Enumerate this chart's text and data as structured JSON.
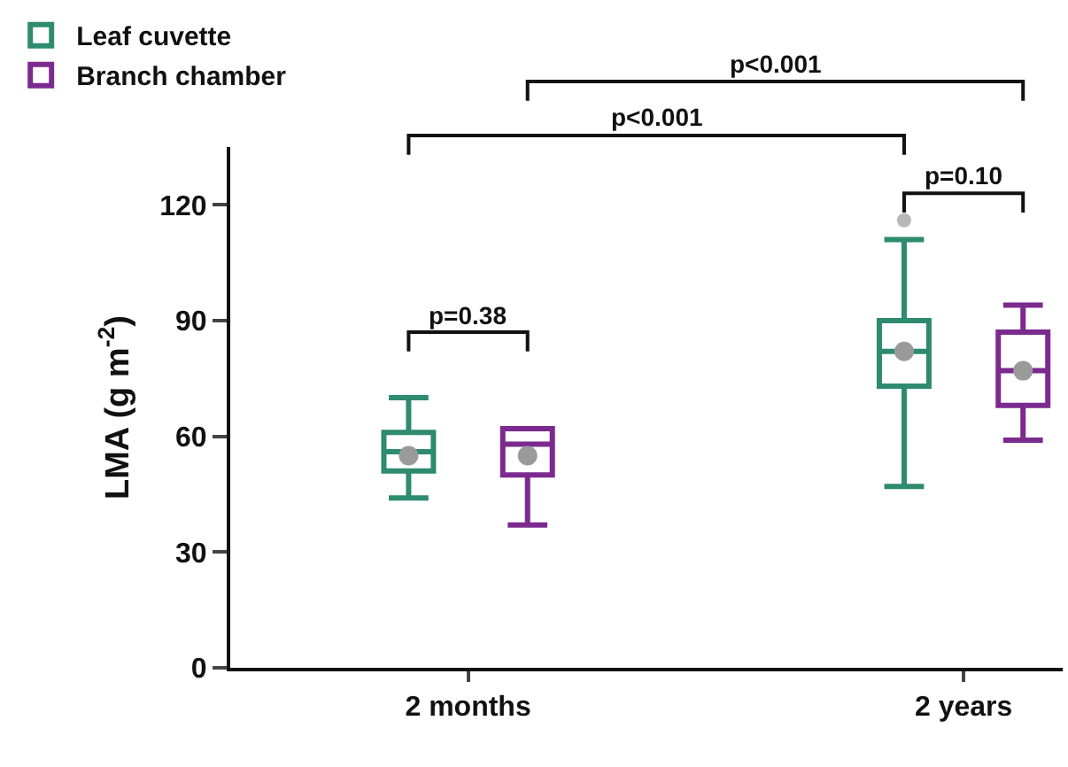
{
  "chart_data": {
    "type": "box",
    "ylabel": "LMA (g m$^{-2}$)",
    "categories": [
      "2 months",
      "2 years"
    ],
    "series": [
      {
        "name": "Leaf cuvette",
        "color": "#2e8b6e",
        "boxes": [
          {
            "low": 44,
            "q1": 51,
            "median": 56,
            "q3": 61,
            "high": 70,
            "mean": 55
          },
          {
            "low": 47,
            "q1": 73,
            "median": 82,
            "q3": 90,
            "high": 111,
            "mean": 82,
            "outliers": [
              116
            ]
          }
        ]
      },
      {
        "name": "Branch chamber",
        "color": "#7b2a8e",
        "boxes": [
          {
            "low": 37,
            "q1": 50,
            "median": 58,
            "q3": 62,
            "high": 62,
            "mean": 55
          },
          {
            "low": 59,
            "q1": 68,
            "median": 77,
            "q3": 87,
            "high": 94,
            "mean": 77
          }
        ]
      }
    ],
    "annotations": [
      "p=0.38",
      "p=0.10",
      "p<0.001",
      "p<0.001"
    ],
    "ylim": [
      0,
      135
    ],
    "yticks": [
      0,
      30,
      60,
      90,
      120
    ],
    "grid": false,
    "legend": "top left"
  }
}
